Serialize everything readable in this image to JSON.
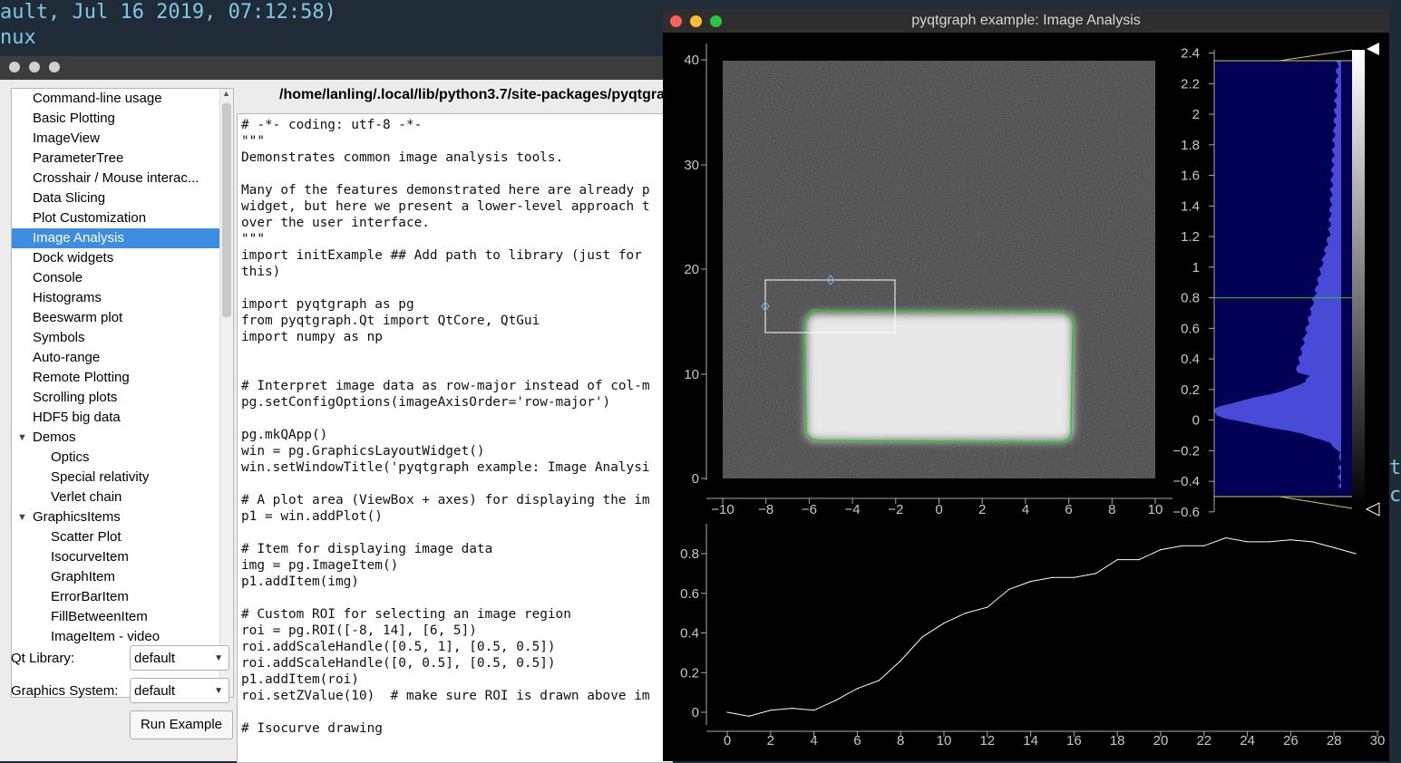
{
  "terminal": {
    "line1": "ault, Jul 16 2019, 07:12:58)",
    "line2": "nux",
    "frag1": "t",
    "frag2": "c"
  },
  "browser": {
    "tree_items": [
      {
        "label": "Command-line usage"
      },
      {
        "label": "Basic Plotting"
      },
      {
        "label": "ImageView"
      },
      {
        "label": "ParameterTree"
      },
      {
        "label": "Crosshair / Mouse interac..."
      },
      {
        "label": "Data Slicing"
      },
      {
        "label": "Plot Customization"
      },
      {
        "label": "Image Analysis"
      },
      {
        "label": "Dock widgets"
      },
      {
        "label": "Console"
      },
      {
        "label": "Histograms"
      },
      {
        "label": "Beeswarm plot"
      },
      {
        "label": "Symbols"
      },
      {
        "label": "Auto-range"
      },
      {
        "label": "Remote Plotting"
      },
      {
        "label": "Scrolling plots"
      },
      {
        "label": "HDF5 big data"
      },
      {
        "label": "Demos"
      },
      {
        "label": "Optics"
      },
      {
        "label": "Special relativity"
      },
      {
        "label": "Verlet chain"
      },
      {
        "label": "GraphicsItems"
      },
      {
        "label": "Scatter Plot"
      },
      {
        "label": "IsocurveItem"
      },
      {
        "label": "GraphItem"
      },
      {
        "label": "ErrorBarItem"
      },
      {
        "label": "FillBetweenItem"
      },
      {
        "label": "ImageItem - video"
      }
    ],
    "qt_library_label": "Qt Library:",
    "qt_library_value": "default",
    "graphics_system_label": "Graphics System:",
    "graphics_system_value": "default",
    "run_button": "Run Example",
    "file_path": "/home/lanling/.local/lib/python3.7/site-packages/pyqtgrap",
    "code_lines": [
      "# -*- coding: utf-8 -*-",
      "\"\"\"",
      "Demonstrates common image analysis tools.",
      "",
      "Many of the features demonstrated here are already p",
      "widget, but here we present a lower-level approach t",
      "over the user interface.",
      "\"\"\"",
      "import initExample ## Add path to library (just for",
      "this)",
      "",
      "import pyqtgraph as pg",
      "from pyqtgraph.Qt import QtCore, QtGui",
      "import numpy as np",
      "",
      "",
      "# Interpret image data as row-major instead of col-m",
      "pg.setConfigOptions(imageAxisOrder='row-major')",
      "",
      "pg.mkQApp()",
      "win = pg.GraphicsLayoutWidget()",
      "win.setWindowTitle('pyqtgraph example: Image Analysi",
      "",
      "# A plot area (ViewBox + axes) for displaying the im",
      "p1 = win.addPlot()",
      "",
      "# Item for displaying image data",
      "img = pg.ImageItem()",
      "p1.addItem(img)",
      "",
      "# Custom ROI for selecting an image region",
      "roi = pg.ROI([-8, 14], [6, 5])",
      "roi.addScaleHandle([0.5, 1], [0.5, 0.5])",
      "roi.addScaleHandle([0, 0.5], [0.5, 0.5])",
      "p1.addItem(roi)",
      "roi.setZValue(10)  # make sure ROI is drawn above im",
      "",
      "# Isocurve drawing"
    ]
  },
  "plot_window": {
    "title": "pyqtgraph example: Image Analysis",
    "colors": {
      "close": "#fe5f57",
      "minimize": "#febc2e",
      "zoom": "#28c840",
      "isocurve": "#22cc22",
      "histogram": "#4a4ad8",
      "line": "#ffffff"
    },
    "image_plot": {
      "x_ticks": [
        "−10",
        "−8",
        "−6",
        "−4",
        "−2",
        "0",
        "2",
        "4",
        "6",
        "8",
        "10"
      ],
      "y_ticks": [
        "0",
        "10",
        "20",
        "30",
        "40"
      ]
    },
    "histogram": {
      "ticks": [
        "2.4",
        "2.2",
        "2",
        "1.8",
        "1.6",
        "1.4",
        "1.2",
        "1",
        "0.8",
        "0.6",
        "0.4",
        "0.2",
        "0",
        "−0.2",
        "−0.4",
        "−0.6"
      ],
      "iso_level": 0.8
    }
  },
  "chart_data": {
    "type": "line",
    "x": [
      0,
      1,
      2,
      3,
      4,
      5,
      6,
      7,
      8,
      9,
      10,
      11,
      12,
      13,
      14,
      15,
      16,
      17,
      18,
      19,
      20,
      21,
      22,
      23,
      24,
      25,
      26,
      27,
      28,
      29
    ],
    "values": [
      0.0,
      -0.02,
      0.01,
      0.02,
      0.01,
      0.06,
      0.12,
      0.16,
      0.26,
      0.38,
      0.45,
      0.5,
      0.53,
      0.62,
      0.66,
      0.68,
      0.68,
      0.7,
      0.77,
      0.77,
      0.82,
      0.84,
      0.84,
      0.88,
      0.86,
      0.86,
      0.87,
      0.86,
      0.83,
      0.8
    ],
    "x_ticks": [
      "0",
      "2",
      "4",
      "6",
      "8",
      "10",
      "12",
      "14",
      "16",
      "18",
      "20",
      "22",
      "24",
      "26",
      "28",
      "30"
    ],
    "y_ticks": [
      "0",
      "0.2",
      "0.4",
      "0.6",
      "0.8"
    ],
    "xlim": [
      -0.8,
      30
    ],
    "ylim": [
      -0.06,
      0.92
    ]
  }
}
